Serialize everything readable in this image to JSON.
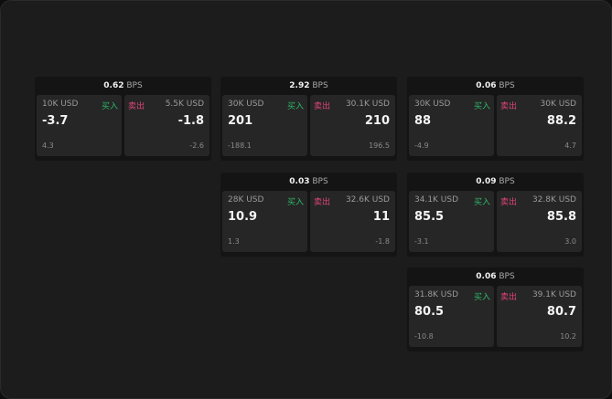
{
  "units": {
    "spread": "BPS",
    "buy_label": "买入",
    "sell_label": "卖出"
  },
  "colors": {
    "buy": "#2db86a",
    "sell": "#e0457a"
  },
  "cards": [
    {
      "spread": "0.62",
      "buy": {
        "qty": "10K USD",
        "price": "-3.7",
        "change": "4.3"
      },
      "sell": {
        "qty": "5.5K USD",
        "price": "-1.8",
        "change": "-2.6"
      }
    },
    {
      "spread": "2.92",
      "buy": {
        "qty": "30K USD",
        "price": "201",
        "change": "-188.1"
      },
      "sell": {
        "qty": "30.1K USD",
        "price": "210",
        "change": "196.5"
      }
    },
    {
      "spread": "0.06",
      "buy": {
        "qty": "30K USD",
        "price": "88",
        "change": "-4.9"
      },
      "sell": {
        "qty": "30K USD",
        "price": "88.2",
        "change": "4.7"
      }
    },
    {
      "spread": "0.03",
      "buy": {
        "qty": "28K USD",
        "price": "10.9",
        "change": "1.3"
      },
      "sell": {
        "qty": "32.6K USD",
        "price": "11",
        "change": "-1.8"
      }
    },
    {
      "spread": "0.09",
      "buy": {
        "qty": "34.1K USD",
        "price": "85.5",
        "change": "-3.1"
      },
      "sell": {
        "qty": "32.8K USD",
        "price": "85.8",
        "change": "3.0"
      }
    },
    {
      "spread": "0.06",
      "buy": {
        "qty": "31.8K USD",
        "price": "80.5",
        "change": "-10.8"
      },
      "sell": {
        "qty": "39.1K USD",
        "price": "80.7",
        "change": "10.2"
      }
    }
  ]
}
